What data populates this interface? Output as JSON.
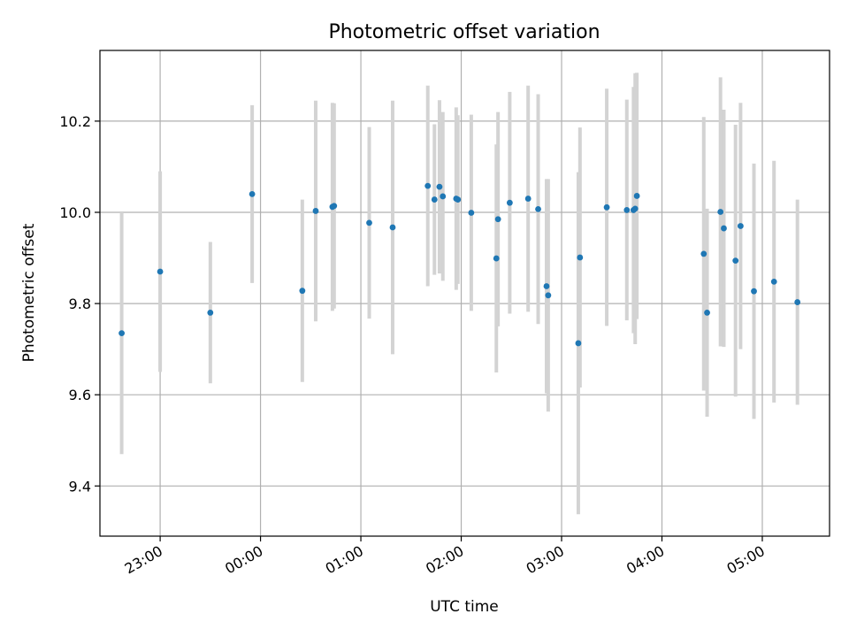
{
  "chart_data": {
    "type": "scatter",
    "title": "Photometric offset variation",
    "xlabel": "UTC time",
    "ylabel": "Photometric offset",
    "grid": true,
    "x_ticks": [
      "23:00",
      "00:00",
      "01:00",
      "02:00",
      "03:00",
      "04:00",
      "05:00"
    ],
    "y_ticks": [
      "9.4",
      "9.6",
      "9.8",
      "10.0",
      "10.2"
    ],
    "ylim": [
      9.29,
      10.355
    ],
    "xlim_hours": [
      22.4,
      29.67
    ],
    "colors": {
      "points": "#1f77b4",
      "errorbars": "#d3d3d3"
    },
    "points": [
      {
        "t": "22:37",
        "y": 9.735,
        "err": 0.265
      },
      {
        "t": "23:00",
        "y": 9.87,
        "err": 0.22
      },
      {
        "t": "23:30",
        "y": 9.78,
        "err": 0.155
      },
      {
        "t": "23:55",
        "y": 10.04,
        "err": 0.195
      },
      {
        "t": "00:25",
        "y": 9.828,
        "err": 0.2
      },
      {
        "t": "00:33",
        "y": 10.003,
        "err": 0.242
      },
      {
        "t": "00:43",
        "y": 10.012,
        "err": 0.228
      },
      {
        "t": "00:44",
        "y": 10.014,
        "err": 0.225
      },
      {
        "t": "01:05",
        "y": 9.977,
        "err": 0.21
      },
      {
        "t": "01:19",
        "y": 9.967,
        "err": 0.278
      },
      {
        "t": "01:40",
        "y": 10.058,
        "err": 0.22
      },
      {
        "t": "01:44",
        "y": 10.028,
        "err": 0.165
      },
      {
        "t": "01:47",
        "y": 10.056,
        "err": 0.19
      },
      {
        "t": "01:49",
        "y": 10.035,
        "err": 0.185
      },
      {
        "t": "01:57",
        "y": 10.03,
        "err": 0.2
      },
      {
        "t": "01:58",
        "y": 10.028,
        "err": 0.185
      },
      {
        "t": "02:06",
        "y": 9.999,
        "err": 0.215
      },
      {
        "t": "02:21",
        "y": 9.899,
        "err": 0.25
      },
      {
        "t": "02:22",
        "y": 9.985,
        "err": 0.235
      },
      {
        "t": "02:29",
        "y": 10.021,
        "err": 0.243
      },
      {
        "t": "02:40",
        "y": 10.03,
        "err": 0.248
      },
      {
        "t": "02:46",
        "y": 10.007,
        "err": 0.252
      },
      {
        "t": "02:51",
        "y": 9.838,
        "err": 0.235
      },
      {
        "t": "02:52",
        "y": 9.818,
        "err": 0.255
      },
      {
        "t": "03:10",
        "y": 9.713,
        "err": 0.375
      },
      {
        "t": "03:11",
        "y": 9.901,
        "err": 0.285
      },
      {
        "t": "03:27",
        "y": 10.011,
        "err": 0.26
      },
      {
        "t": "03:39",
        "y": 10.005,
        "err": 0.242
      },
      {
        "t": "03:43",
        "y": 10.005,
        "err": 0.27
      },
      {
        "t": "03:44",
        "y": 10.008,
        "err": 0.297
      },
      {
        "t": "03:45",
        "y": 10.036,
        "err": 0.27
      },
      {
        "t": "04:25",
        "y": 9.909,
        "err": 0.3
      },
      {
        "t": "04:27",
        "y": 9.78,
        "err": 0.228
      },
      {
        "t": "04:35",
        "y": 10.001,
        "err": 0.295
      },
      {
        "t": "04:37",
        "y": 9.965,
        "err": 0.26
      },
      {
        "t": "04:44",
        "y": 9.894,
        "err": 0.298
      },
      {
        "t": "04:47",
        "y": 9.97,
        "err": 0.27
      },
      {
        "t": "04:55",
        "y": 9.827,
        "err": 0.28
      },
      {
        "t": "05:07",
        "y": 9.848,
        "err": 0.265
      },
      {
        "t": "05:21",
        "y": 9.803,
        "err": 0.225
      }
    ]
  }
}
